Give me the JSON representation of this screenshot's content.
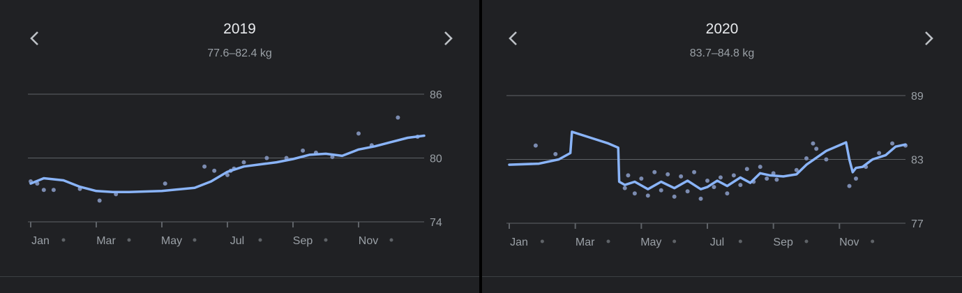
{
  "panels": [
    {
      "year_label": "2019",
      "range_label": "77.6–82.4 kg",
      "nav": {
        "prev_icon": "chevron-left-icon",
        "next_icon": "chevron-right-icon"
      }
    },
    {
      "year_label": "2020",
      "range_label": "83.7–84.8 kg",
      "nav": {
        "prev_icon": "chevron-left-icon",
        "next_icon": "chevron-right-icon"
      }
    }
  ],
  "colors": {
    "background": "#202124",
    "trend_line": "#8ab4f8",
    "points": "#7b8bb0",
    "grid": "#5f6368",
    "text": "#9aa0a6",
    "title": "#e8eaed"
  },
  "chart_data": [
    {
      "type": "line",
      "title": "2019",
      "subtitle": "77.6–82.4 kg",
      "x_tick_labels": [
        "Jan",
        "Mar",
        "May",
        "Jul",
        "Sep",
        "Nov"
      ],
      "y_ticks": [
        74,
        80,
        86
      ],
      "ylim": [
        74,
        86
      ],
      "xlim": [
        0,
        12
      ],
      "grid": true,
      "series": [
        {
          "kind": "trend",
          "x": [
            0.0,
            0.4,
            1.0,
            1.5,
            2.0,
            2.5,
            3.0,
            4.0,
            5.0,
            5.5,
            6.0,
            6.5,
            7.0,
            7.5,
            8.0,
            8.5,
            9.0,
            9.5,
            10.0,
            10.5,
            11.0,
            11.5,
            12.0
          ],
          "y": [
            77.6,
            78.1,
            77.9,
            77.3,
            76.9,
            76.8,
            76.8,
            76.9,
            77.2,
            77.8,
            78.7,
            79.2,
            79.4,
            79.6,
            79.9,
            80.3,
            80.4,
            80.2,
            80.8,
            81.1,
            81.5,
            81.9,
            82.1
          ]
        },
        {
          "kind": "points",
          "x": [
            0.0,
            0.2,
            0.4,
            0.7,
            1.5,
            2.1,
            2.6,
            4.1,
            5.3,
            5.6,
            6.0,
            6.1,
            6.2,
            6.5,
            7.2,
            7.8,
            8.3,
            8.7,
            9.2,
            10.0,
            10.4,
            11.2,
            11.8
          ],
          "y": [
            77.8,
            77.6,
            77.0,
            77.0,
            77.1,
            76.0,
            76.6,
            77.6,
            79.2,
            78.8,
            78.4,
            78.8,
            79.0,
            79.6,
            80.0,
            80.0,
            80.7,
            80.5,
            80.1,
            82.3,
            81.2,
            83.8,
            82.0
          ]
        }
      ]
    },
    {
      "type": "line",
      "title": "2020",
      "subtitle": "83.7–84.8 kg",
      "x_tick_labels": [
        "Jan",
        "Mar",
        "May",
        "Jul",
        "Sep",
        "Nov"
      ],
      "y_ticks": [
        77,
        83,
        89
      ],
      "ylim": [
        77,
        89
      ],
      "xlim": [
        0,
        12
      ],
      "grid": true,
      "series": [
        {
          "kind": "trend",
          "x": [
            0.0,
            0.9,
            1.5,
            1.85,
            1.9,
            2.5,
            3.0,
            3.3,
            3.33,
            3.5,
            3.8,
            4.2,
            4.6,
            5.0,
            5.4,
            5.8,
            6.0,
            6.3,
            6.6,
            7.0,
            7.3,
            7.6,
            7.9,
            8.3,
            8.7,
            9.0,
            9.6,
            10.2,
            10.3,
            10.4,
            10.5,
            10.7,
            11.0,
            11.4,
            11.7,
            12.0
          ],
          "y": [
            82.5,
            82.6,
            83.0,
            83.6,
            85.6,
            85.0,
            84.5,
            84.1,
            80.9,
            80.6,
            80.9,
            80.2,
            80.9,
            80.3,
            81.0,
            80.2,
            80.4,
            81.0,
            80.5,
            81.3,
            80.8,
            81.7,
            81.5,
            81.4,
            81.6,
            82.5,
            83.8,
            84.6,
            83.0,
            81.8,
            82.2,
            82.3,
            83.0,
            83.4,
            84.2,
            84.4
          ]
        },
        {
          "kind": "points",
          "x": [
            0.8,
            1.4,
            3.5,
            3.6,
            3.8,
            4.0,
            4.2,
            4.4,
            4.6,
            4.8,
            5.0,
            5.2,
            5.4,
            5.6,
            5.8,
            6.0,
            6.2,
            6.4,
            6.6,
            6.8,
            7.0,
            7.2,
            7.4,
            7.6,
            7.8,
            8.0,
            8.1,
            8.7,
            9.0,
            9.2,
            9.3,
            9.6,
            10.3,
            10.5,
            10.8,
            11.2,
            11.6,
            12.0
          ],
          "y": [
            84.3,
            83.5,
            80.3,
            81.5,
            79.8,
            81.2,
            79.6,
            81.8,
            80.1,
            81.6,
            79.5,
            81.4,
            80.0,
            81.8,
            79.3,
            81.0,
            80.4,
            81.3,
            79.8,
            81.5,
            80.6,
            82.1,
            80.9,
            82.3,
            81.2,
            81.7,
            81.1,
            82.0,
            83.1,
            84.5,
            84.0,
            83.0,
            80.5,
            81.2,
            82.3,
            83.6,
            84.5,
            84.3
          ]
        }
      ]
    }
  ]
}
